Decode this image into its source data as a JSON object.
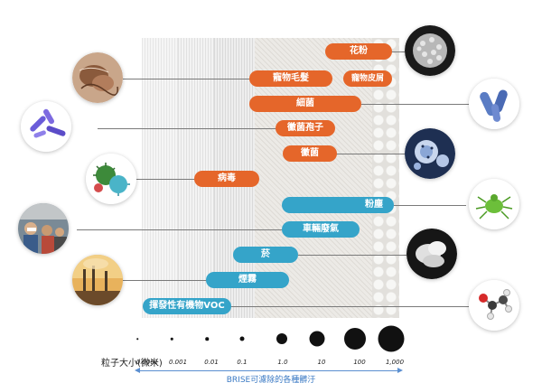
{
  "labels": {
    "pollen": "花粉",
    "pet_hair": "寵物毛髮",
    "pet_dander": "寵物皮屑",
    "bacteria": "細菌",
    "mold_spores": "黴菌孢子",
    "mold": "黴菌",
    "virus": "病毒",
    "dust": "粉塵",
    "vehicle_exhaust": "車輛廢氣",
    "smoke": "菸",
    "smog": "煙霧",
    "voc": "揮發性有機物VOC"
  },
  "scale": {
    "title": "粒子大小(微米)",
    "ticks": [
      "0.0001",
      "0.001",
      "0.01",
      "0.1",
      "1.0",
      "10",
      "100",
      "1,000"
    ],
    "caption": "BRISE可濾除的各種髒汙"
  },
  "colors": {
    "orange": "#e5662a",
    "blue": "#35a4c9",
    "arrow": "#5b8fd0"
  },
  "icons": [
    "pollen-image",
    "bacteria-image",
    "mold-image",
    "dust-mite-image",
    "smoke-image",
    "molecule-image",
    "pet-hair-image",
    "bacteria-rods-image",
    "virus-image",
    "traffic-crowd-image",
    "smog-factory-image"
  ]
}
